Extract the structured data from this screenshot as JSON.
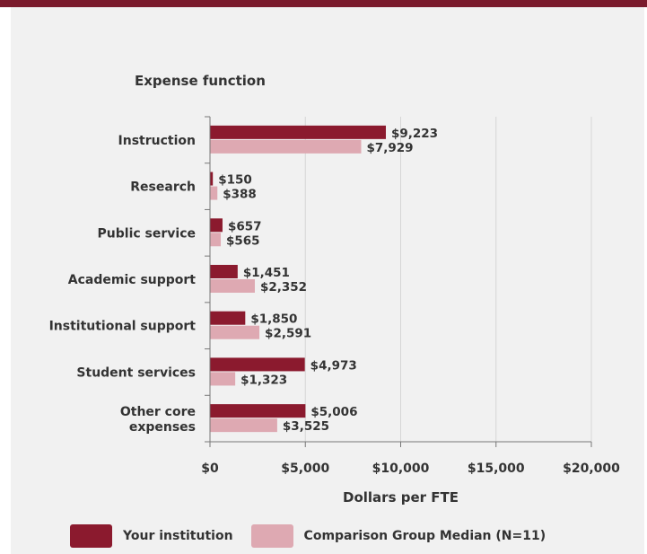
{
  "chart_data": {
    "type": "bar",
    "orientation": "horizontal",
    "title": "Expense function",
    "xlabel": "Dollars per FTE",
    "ylabel": "",
    "xlim": [
      0,
      20000
    ],
    "x_ticks": [
      0,
      5000,
      10000,
      15000,
      20000
    ],
    "x_tick_labels": [
      "$0",
      "$5,000",
      "$10,000",
      "$15,000",
      "$20,000"
    ],
    "grid": true,
    "legend_position": "bottom",
    "categories": [
      "Instruction",
      "Research",
      "Public service",
      "Academic support",
      "Institutional support",
      "Student services",
      "Other core expenses"
    ],
    "series": [
      {
        "name": "Your institution",
        "color": "#8b1a2e",
        "values": [
          9223,
          150,
          657,
          1451,
          1850,
          4973,
          5006
        ],
        "labels": [
          "$9,223",
          "$150",
          "$657",
          "$1,451",
          "$1,850",
          "$4,973",
          "$5,006"
        ]
      },
      {
        "name": "Comparison Group Median (N=11)",
        "color": "#dea9b2",
        "values": [
          7929,
          388,
          565,
          2352,
          2591,
          1323,
          3525
        ],
        "labels": [
          "$7,929",
          "$388",
          "$565",
          "$2,352",
          "$2,591",
          "$1,323",
          "$3,525"
        ]
      }
    ]
  }
}
